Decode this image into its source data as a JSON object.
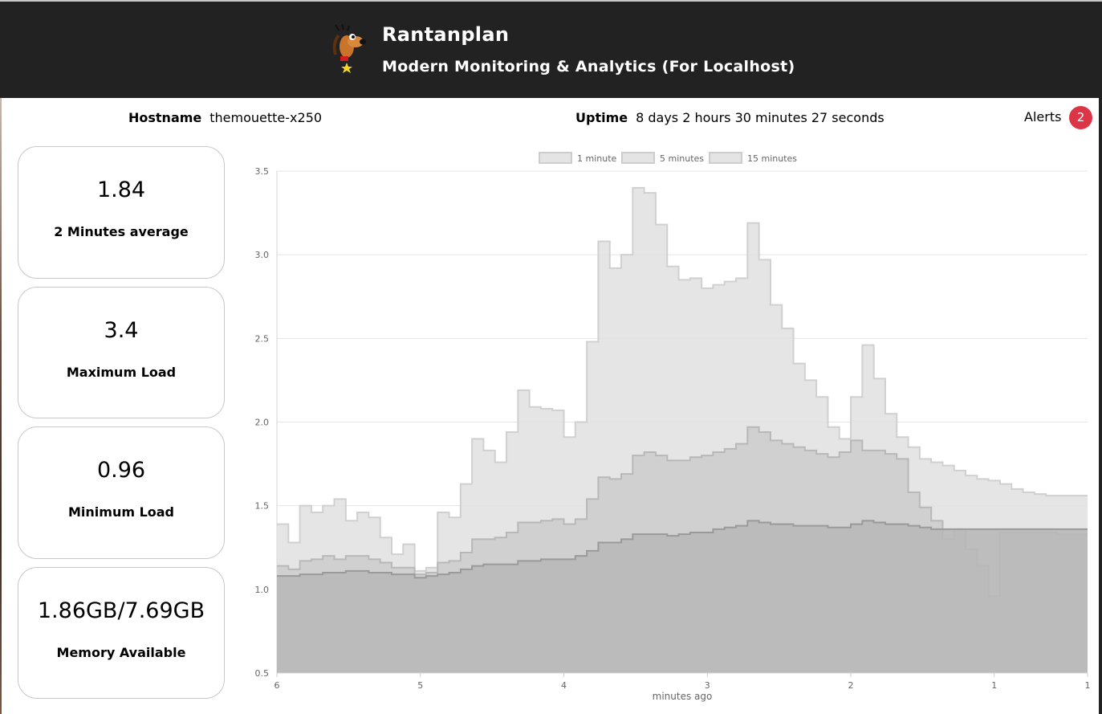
{
  "header": {
    "title": "Rantanplan",
    "subtitle": "Modern Monitoring & Analytics (For Localhost)",
    "logo_icon": "dog-mascot-icon"
  },
  "info": {
    "hostname_label": "Hostname",
    "hostname_value": "themouette-x250",
    "uptime_label": "Uptime",
    "uptime_value": "8 days 2 hours 30 minutes 27 seconds",
    "alerts_label": "Alerts",
    "alerts_count": "2"
  },
  "cards": [
    {
      "value": "1.84",
      "label": "2 Minutes average"
    },
    {
      "value": "3.4",
      "label": "Maximum Load"
    },
    {
      "value": "0.96",
      "label": "Minimum Load"
    },
    {
      "value": "1.86GB/7.69GB",
      "label": "Memory Available"
    }
  ],
  "colors": {
    "header_bg": "#222222",
    "badge": "#dc3545",
    "card_border": "#c8c8c8"
  },
  "chart_data": {
    "type": "area",
    "xlabel": "minutes ago",
    "ylabel": "",
    "xlim": [
      6,
      0.35
    ],
    "ylim": [
      0.5,
      3.5
    ],
    "x_ticks": [
      "6",
      "5",
      "4",
      "3",
      "2",
      "1",
      "1"
    ],
    "y_ticks": [
      "3.5",
      "3.0",
      "2.5",
      "2.0",
      "1.5",
      "1.0",
      "0.5"
    ],
    "grid": true,
    "legend": "top-center",
    "x": [
      6.0,
      5.92,
      5.84,
      5.76,
      5.68,
      5.6,
      5.52,
      5.44,
      5.36,
      5.28,
      5.2,
      5.12,
      5.04,
      4.96,
      4.88,
      4.8,
      4.72,
      4.64,
      4.56,
      4.48,
      4.4,
      4.32,
      4.24,
      4.16,
      4.08,
      4.0,
      3.92,
      3.84,
      3.76,
      3.68,
      3.6,
      3.52,
      3.44,
      3.36,
      3.28,
      3.2,
      3.12,
      3.04,
      2.96,
      2.88,
      2.8,
      2.72,
      2.64,
      2.56,
      2.48,
      2.4,
      2.32,
      2.24,
      2.16,
      2.08,
      2.0,
      1.92,
      1.84,
      1.76,
      1.68,
      1.6,
      1.52,
      1.44,
      1.36,
      1.28,
      1.2,
      1.12,
      1.04,
      0.96,
      0.88,
      0.8,
      0.72,
      0.64,
      0.56,
      0.48,
      0.4
    ],
    "series": [
      {
        "name": "1 minute",
        "values": [
          1.39,
          1.28,
          1.5,
          1.46,
          1.5,
          1.54,
          1.41,
          1.46,
          1.43,
          1.31,
          1.21,
          1.27,
          1.11,
          1.13,
          1.46,
          1.43,
          1.63,
          1.9,
          1.83,
          1.76,
          1.94,
          2.19,
          2.09,
          2.08,
          2.07,
          1.91,
          2.0,
          2.48,
          3.08,
          2.92,
          3.0,
          3.4,
          3.37,
          3.18,
          2.93,
          2.85,
          2.86,
          2.8,
          2.82,
          2.84,
          2.86,
          3.19,
          2.97,
          2.7,
          2.56,
          2.35,
          2.25,
          2.15,
          1.97,
          1.9,
          2.15,
          2.46,
          2.26,
          2.05,
          1.91,
          1.85,
          1.78,
          1.76,
          1.74,
          1.71,
          1.68,
          1.66,
          1.65,
          1.63,
          1.6,
          1.58,
          1.57,
          1.56,
          1.56,
          1.56,
          1.56
        ]
      },
      {
        "name": "5 minutes",
        "values": [
          1.14,
          1.12,
          1.17,
          1.18,
          1.2,
          1.18,
          1.2,
          1.2,
          1.18,
          1.16,
          1.13,
          1.13,
          1.09,
          1.1,
          1.16,
          1.17,
          1.22,
          1.3,
          1.3,
          1.31,
          1.34,
          1.4,
          1.4,
          1.41,
          1.42,
          1.39,
          1.42,
          1.54,
          1.67,
          1.66,
          1.69,
          1.8,
          1.82,
          1.8,
          1.77,
          1.77,
          1.79,
          1.8,
          1.82,
          1.84,
          1.87,
          1.97,
          1.94,
          1.89,
          1.87,
          1.85,
          1.83,
          1.81,
          1.79,
          1.82,
          1.89,
          1.83,
          1.83,
          1.81,
          1.78,
          1.58,
          1.49,
          1.41,
          1.3,
          1.36,
          1.24,
          1.14,
          0.96,
          1.34,
          1.34,
          1.34,
          1.34,
          1.34,
          1.33,
          1.33,
          1.33
        ]
      },
      {
        "name": "15 minutes",
        "values": [
          1.08,
          1.08,
          1.09,
          1.09,
          1.1,
          1.1,
          1.11,
          1.11,
          1.1,
          1.1,
          1.09,
          1.09,
          1.07,
          1.08,
          1.09,
          1.1,
          1.12,
          1.14,
          1.15,
          1.15,
          1.15,
          1.17,
          1.17,
          1.18,
          1.18,
          1.18,
          1.2,
          1.23,
          1.28,
          1.28,
          1.3,
          1.33,
          1.33,
          1.33,
          1.32,
          1.33,
          1.34,
          1.34,
          1.36,
          1.37,
          1.38,
          1.41,
          1.4,
          1.39,
          1.39,
          1.38,
          1.38,
          1.38,
          1.37,
          1.37,
          1.39,
          1.41,
          1.4,
          1.39,
          1.39,
          1.38,
          1.37,
          1.36,
          1.36,
          1.36,
          1.36,
          1.36,
          1.36,
          1.36,
          1.36,
          1.36,
          1.36,
          1.36,
          1.36,
          1.36,
          1.36
        ]
      }
    ]
  }
}
